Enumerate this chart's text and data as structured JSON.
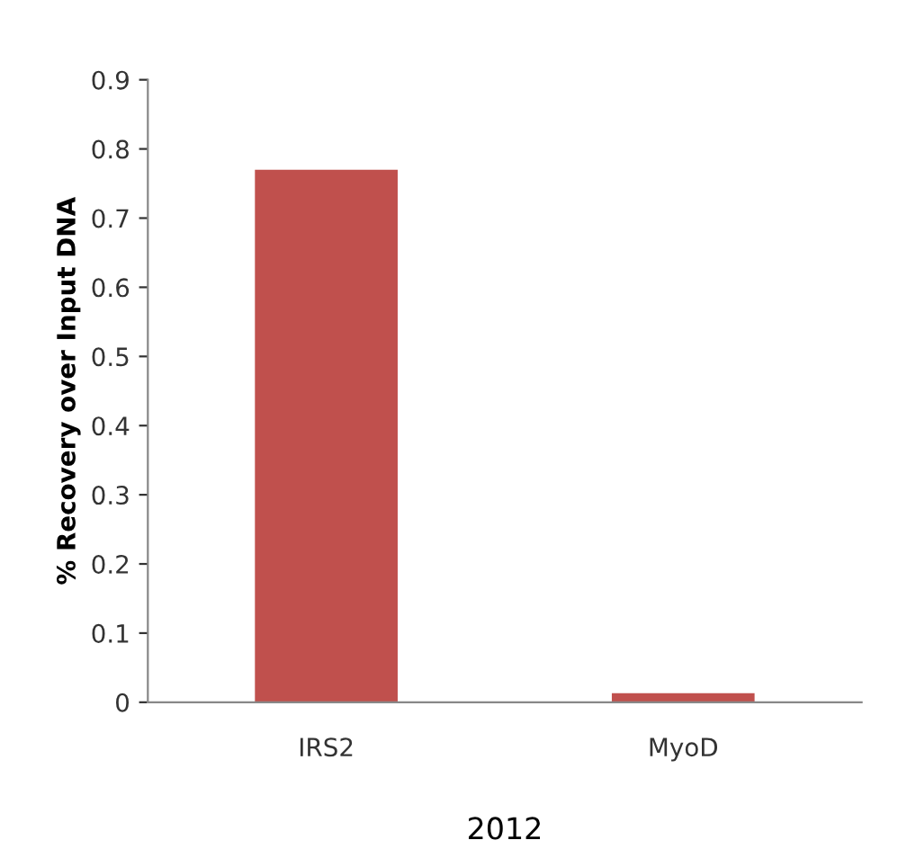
{
  "chart_data": {
    "type": "bar",
    "xlabel": "2012",
    "ylabel": "% Recovery over Input DNA",
    "categories": [
      "IRS2",
      "MyoD"
    ],
    "values": [
      0.77,
      0.013
    ],
    "color": "#c0504d",
    "ylim": [
      0,
      0.9
    ],
    "yticks": [
      0,
      0.1,
      0.2,
      0.3,
      0.4,
      0.5,
      0.6,
      0.7,
      0.8,
      0.9
    ],
    "grid": false
  }
}
